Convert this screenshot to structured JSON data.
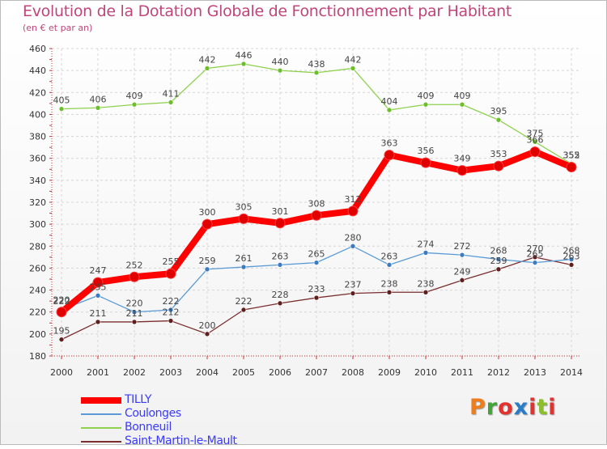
{
  "title": "Evolution de la Dotation Globale de Fonctionnement par Habitant",
  "subtitle": "(en € et par an)",
  "logo": {
    "text": "Proxiti",
    "colors": [
      "#ef7d1a",
      "#3fa535",
      "#e2312e",
      "#2a7cc7",
      "#e2312e",
      "#8bbf2c",
      "#e2312e"
    ]
  },
  "chart_data": {
    "type": "line",
    "title": "Evolution de la Dotation Globale de Fonctionnement par Habitant",
    "subtitle": "(en € et par an)",
    "x": [
      "2000",
      "2001",
      "2002",
      "2003",
      "2004",
      "2005",
      "2006",
      "2007",
      "2008",
      "2009",
      "2010",
      "2011",
      "2012",
      "2013",
      "2014"
    ],
    "ylim": [
      180,
      460
    ],
    "yticks": [
      "180",
      "200",
      "220",
      "240",
      "260",
      "280",
      "300",
      "320",
      "340",
      "360",
      "380",
      "400",
      "420",
      "440",
      "460"
    ],
    "grid": true,
    "series": [
      {
        "name": "TILLY",
        "color": "#ff0000",
        "pointColor": "#e00000",
        "labelColor": "#444444",
        "values": [
          220,
          247,
          252,
          255,
          300,
          305,
          301,
          308,
          312,
          363,
          356,
          349,
          353,
          366,
          352
        ]
      },
      {
        "name": "Coulonges",
        "color": "#5b9bd5",
        "pointColor": "#3b7bc0",
        "labelColor": "#444444",
        "values": [
          222,
          235,
          220,
          222,
          259,
          261,
          263,
          265,
          280,
          263,
          274,
          272,
          268,
          265,
          268
        ]
      },
      {
        "name": "Bonneuil",
        "color": "#8fd14f",
        "pointColor": "#6cbf2a",
        "labelColor": "#444444",
        "values": [
          405,
          406,
          409,
          411,
          442,
          446,
          440,
          438,
          442,
          404,
          409,
          409,
          395,
          375,
          355
        ]
      },
      {
        "name": "Saint-Martin-le-Mault",
        "color": "#7a2e2e",
        "pointColor": "#5e1f1f",
        "labelColor": "#444444",
        "values": [
          195,
          211,
          211,
          212,
          200,
          222,
          228,
          233,
          237,
          238,
          238,
          249,
          259,
          270,
          263
        ]
      }
    ],
    "legend": {
      "position": "bottom-left",
      "items": [
        "TILLY",
        "Coulonges",
        "Bonneuil",
        "Saint-Martin-le-Mault"
      ]
    }
  }
}
